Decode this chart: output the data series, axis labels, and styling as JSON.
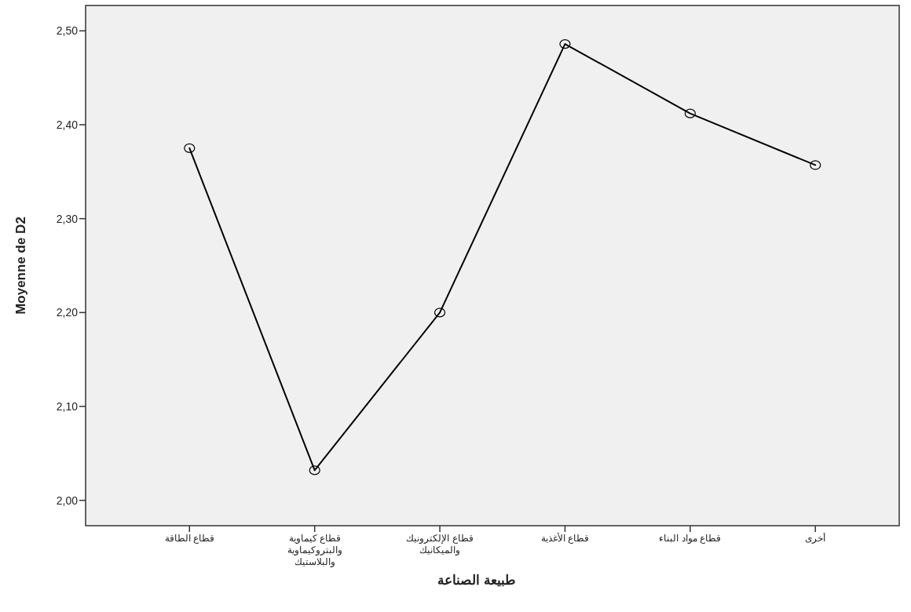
{
  "chart_data": {
    "type": "line",
    "xlabel": "طبيعة الصناعة",
    "ylabel": "Moyenne de D2",
    "categories": [
      "قطاع الطاقة",
      "قطاع كيماوية والبتروكيماوية والبلاستيك",
      "قطاع الإلكترونيك والميكانيك",
      "قطاع الأغذية",
      "قطاع مواد البناء",
      "أخرى"
    ],
    "series": [
      {
        "color": "#000000",
        "values": [
          2.375,
          2.032,
          2.2,
          2.486,
          2.412,
          2.357
        ]
      }
    ],
    "ylim": [
      1.973,
      2.527
    ],
    "yticks": [
      {
        "value": 2.0,
        "label": "2,00"
      },
      {
        "value": 2.1,
        "label": "2,10"
      },
      {
        "value": 2.2,
        "label": "2,20"
      },
      {
        "value": 2.3,
        "label": "2,30"
      },
      {
        "value": 2.4,
        "label": "2,40"
      },
      {
        "value": 2.5,
        "label": "2,50"
      }
    ],
    "marker": "circle",
    "line_style": "solid",
    "grid": false
  }
}
